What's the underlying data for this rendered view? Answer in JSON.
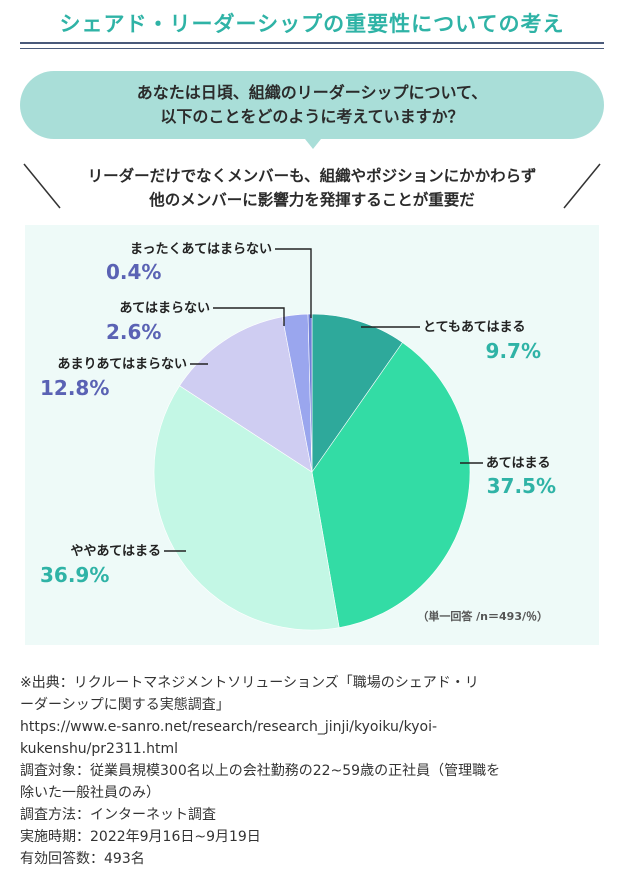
{
  "page": {
    "title": "シェアド・リーダーシップの重要性についての考え",
    "question_line1": "あなたは日頃、組織のリーダーシップについて、",
    "question_line2": "以下のことをどのように考えていますか？",
    "statement_line1": "リーダーだけでなくメンバーも、組織やポジションにかかわらず",
    "statement_line2": "他のメンバーに影響力を発揮することが重要だ"
  },
  "colors": {
    "title": "#2fb3a6",
    "question_bubble": "#a9ded8",
    "chart_bg": "#eefaf8",
    "label_green": "#2fb3a6",
    "label_purple": "#5a62b4"
  },
  "chart_data": {
    "type": "pie",
    "title": "",
    "note": "（単一回答 /n＝493/％）",
    "unit": "%",
    "start": "12 o'clock, clockwise",
    "slices": [
      {
        "label": "とてもあてはまる",
        "value": 9.7,
        "display": "9.7%",
        "color": "#2ea99b"
      },
      {
        "label": "あてはまる",
        "value": 37.5,
        "display": "37.5%",
        "color": "#33dca5"
      },
      {
        "label": "ややあてはまる",
        "value": 36.9,
        "display": "36.9%",
        "color": "#c3f7e5"
      },
      {
        "label": "あまりあてはまらない",
        "value": 12.8,
        "display": "12.8%",
        "color": "#cfcdf2"
      },
      {
        "label": "あてはまらない",
        "value": 2.6,
        "display": "2.6%",
        "color": "#9aa6ee"
      },
      {
        "label": "まったくあてはまらない",
        "value": 0.4,
        "display": "0.4%",
        "color": "#6f7ed6"
      }
    ]
  },
  "source": {
    "line1": "※出典：リクルートマネジメントソリューションズ「職場のシェアド・リ",
    "line2": "ーダーシップに関する実態調査」",
    "line3": "https://www.e-sanro.net/research/research_jinji/kyoiku/kyoi-",
    "line4": "kukenshu/pr2311.html",
    "line5": "調査対象：従業員規模300名以上の会社勤務の22~59歳の正社員（管理職を",
    "line6": "除いた一般社員のみ）",
    "line7": "調査方法：インターネット調査",
    "line8": "実施時期：2022年9月16日~9月19日",
    "line9": "有効回答数：493名"
  }
}
